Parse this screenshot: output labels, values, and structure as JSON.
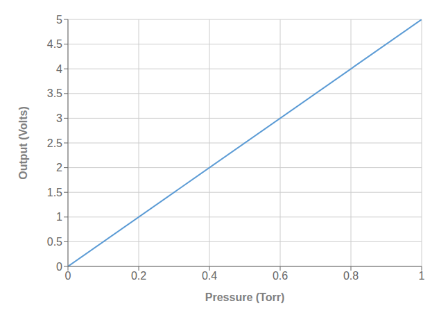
{
  "chart_data": {
    "type": "line",
    "x": [
      0,
      1
    ],
    "values": [
      0,
      5
    ],
    "color": "#5B9BD5",
    "xlabel": "Pressure (Torr)",
    "ylabel": "Output (Volts)",
    "xlim": [
      0,
      1
    ],
    "ylim": [
      0,
      5
    ],
    "xticks": [
      0,
      0.2,
      0.4,
      0.6,
      0.8,
      1.0
    ],
    "yticks": [
      0,
      0.5,
      1.0,
      1.5,
      2.0,
      2.5,
      3.0,
      3.5,
      4.0,
      4.5,
      5.0
    ],
    "grid": true
  }
}
